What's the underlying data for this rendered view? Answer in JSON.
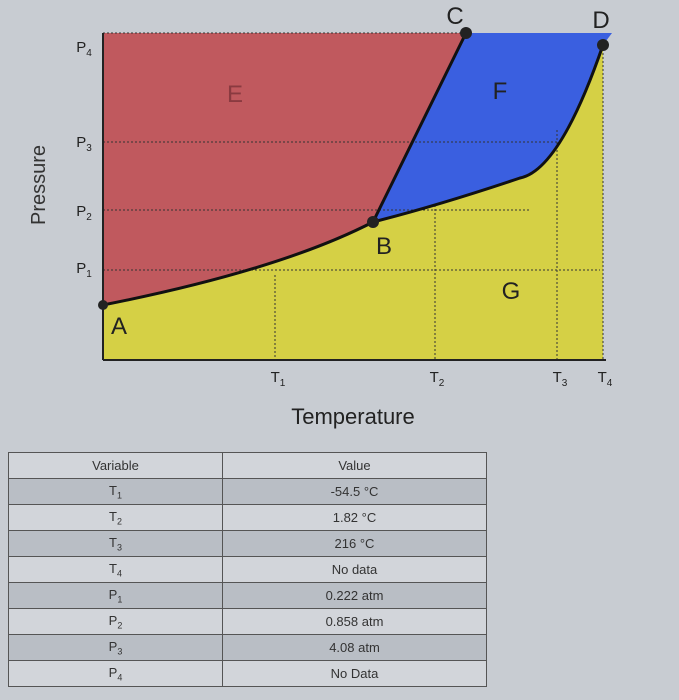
{
  "diagram": {
    "y_axis_label": "Pressure",
    "x_axis_label": "Temperature",
    "pressure_ticks": [
      "P4",
      "P3",
      "P2",
      "P1"
    ],
    "temperature_ticks": [
      "T1",
      "T2",
      "T3",
      "T4"
    ],
    "points": [
      "A",
      "B",
      "C",
      "D"
    ],
    "regions": [
      "E",
      "F",
      "G"
    ]
  },
  "table": {
    "header": [
      "Variable",
      "Value"
    ],
    "rows": [
      [
        "T1",
        "-54.5 °C"
      ],
      [
        "T2",
        "1.82 °C"
      ],
      [
        "T3",
        "216 °C"
      ],
      [
        "T4",
        "No data"
      ],
      [
        "P1",
        "0.222 atm"
      ],
      [
        "P2",
        "0.858 atm"
      ],
      [
        "P3",
        "4.08 atm"
      ],
      [
        "P4",
        "No Data"
      ]
    ]
  }
}
